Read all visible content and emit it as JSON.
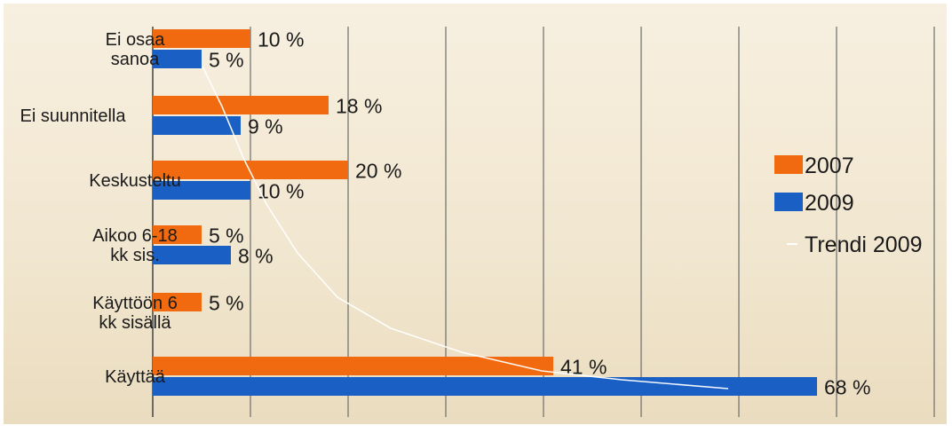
{
  "chart_data": {
    "type": "bar",
    "orientation": "horizontal",
    "categories": [
      [
        "Ei osaa",
        "sanoa"
      ],
      [
        "Ei suunnitella"
      ],
      [
        "Keskusteltu"
      ],
      [
        "Aikoo 6-18",
        "kk sis."
      ],
      [
        "Käyttöön 6",
        "kk sisällä"
      ],
      [
        "Käyttää"
      ]
    ],
    "series": [
      {
        "name": "2007",
        "color": "#f26a0f",
        "values": [
          10,
          18,
          20,
          5,
          5,
          41
        ],
        "labels": [
          "10 %",
          "18 %",
          "20 %",
          "5 %",
          "5 %",
          "41 %"
        ]
      },
      {
        "name": "2009",
        "color": "#1a5fc4",
        "values": [
          5,
          9,
          10,
          8,
          null,
          68
        ],
        "labels": [
          "5 %",
          "9 %",
          "10 %",
          "8 %",
          null,
          "68 %"
        ]
      }
    ],
    "trend": {
      "name": "Trendi 2009",
      "color": "#ffffff"
    },
    "xlim": [
      0,
      80
    ],
    "grid": true,
    "legend_position": "right"
  }
}
